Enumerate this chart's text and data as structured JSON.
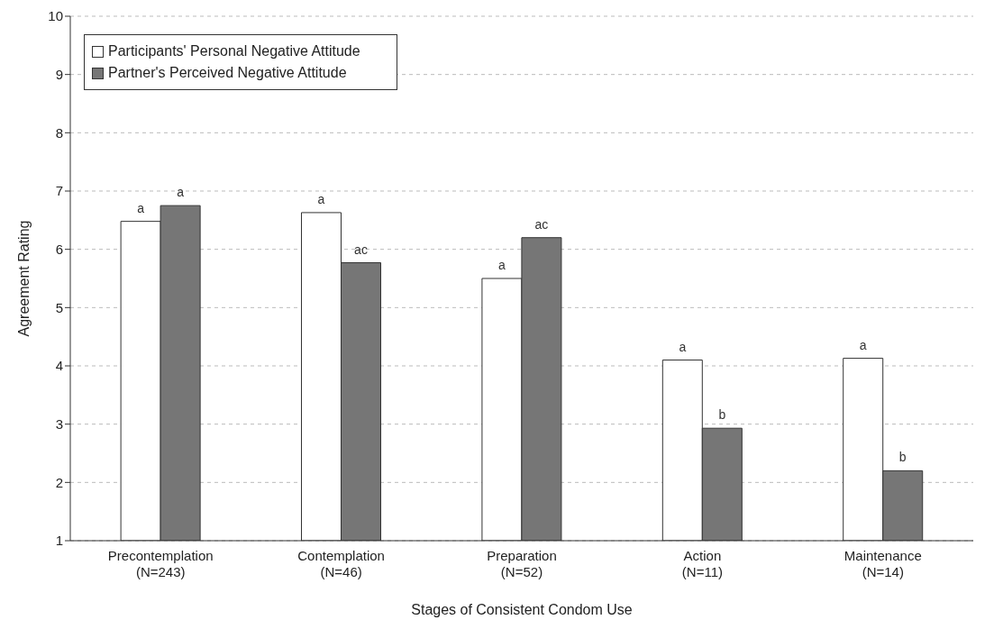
{
  "chart_data": {
    "type": "bar",
    "xlabel": "Stages of Consistent Condom Use",
    "ylabel": "Agreement Rating",
    "categories": [
      "Precontemplation\n(N=243)",
      "Contemplation\n(N=46)",
      "Preparation\n(N=52)",
      "Action\n(N=11)",
      "Maintenance\n(N=14)"
    ],
    "series": [
      {
        "name": "Participants' Personal Negative Attitude",
        "color": "#ffffff",
        "values": [
          6.48,
          6.63,
          5.5,
          4.1,
          4.13
        ]
      },
      {
        "name": "Partner's Perceived Negative Attitude",
        "color": "#767676",
        "values": [
          6.75,
          5.77,
          6.2,
          2.93,
          2.2
        ]
      }
    ],
    "ylim": [
      1,
      10
    ],
    "yticks": [
      1,
      2,
      3,
      4,
      5,
      6,
      7,
      8,
      9,
      10
    ],
    "grid": "y",
    "legend": "top left",
    "annotations": [
      {
        "text": "a",
        "x": "Precontemplation\n(N=243)",
        "y": 6.48
      },
      {
        "text": "a",
        "x": "Precontemplation\n(N=243)",
        "y": 6.75
      },
      {
        "text": "a",
        "x": "Contemplation\n(N=46)",
        "y": 6.63
      },
      {
        "text": "ac",
        "x": "Contemplation\n(N=46)",
        "y": 5.77
      },
      {
        "text": "a",
        "x": "Preparation\n(N=52)",
        "y": 5.5
      },
      {
        "text": "ac",
        "x": "Preparation\n(N=52)",
        "y": 6.2
      },
      {
        "text": "a",
        "x": "Action\n(N=11)",
        "y": 4.1
      },
      {
        "text": "b",
        "x": "Action\n(N=11)",
        "y": 2.93
      },
      {
        "text": "a",
        "x": "Maintenance\n(N=14)",
        "y": 4.13
      },
      {
        "text": "b",
        "x": "Maintenance\n(N=14)",
        "y": 2.2
      }
    ]
  }
}
